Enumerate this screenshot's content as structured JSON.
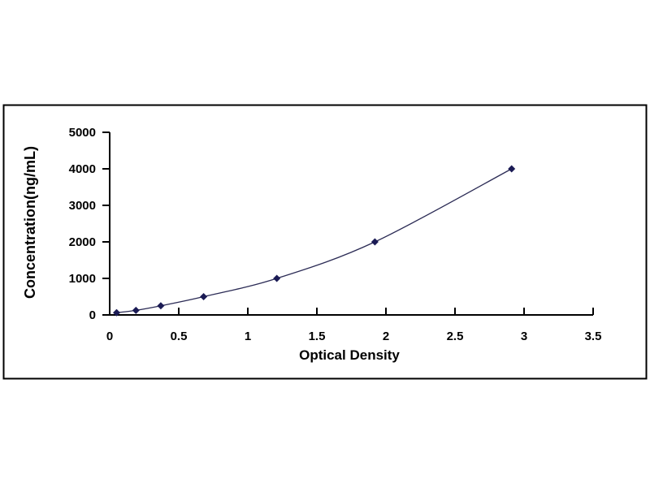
{
  "page": {
    "background_color": "#ffffff",
    "frame_border_color": "#000000"
  },
  "chart_data": {
    "type": "scatter",
    "subtype": "standard-curve-with-smooth-line",
    "title": "",
    "xlabel": "Optical Density",
    "ylabel": "Concentration(ng/mL)",
    "x": [
      0.05,
      0.19,
      0.37,
      0.68,
      1.21,
      1.92,
      2.91
    ],
    "y": [
      62.5,
      125,
      250,
      500,
      1000,
      2000,
      4000
    ],
    "xlim": [
      0,
      3.5
    ],
    "ylim": [
      0,
      5000
    ],
    "x_ticks": [
      0,
      0.5,
      1,
      1.5,
      2,
      2.5,
      3,
      3.5
    ],
    "x_tick_labels": [
      "0",
      "0.5",
      "1",
      "1.5",
      "2",
      "2.5",
      "3",
      "3.5"
    ],
    "y_ticks": [
      0,
      1000,
      2000,
      3000,
      4000,
      5000
    ],
    "y_tick_labels": [
      "0",
      "1000",
      "2000",
      "3000",
      "4000",
      "5000"
    ],
    "grid": false,
    "legend_position": "none",
    "marker_shape": "diamond",
    "colors": {
      "line": "#2b2b55",
      "marker": "#1b1b55",
      "axis": "#000000",
      "text": "#000000"
    }
  }
}
